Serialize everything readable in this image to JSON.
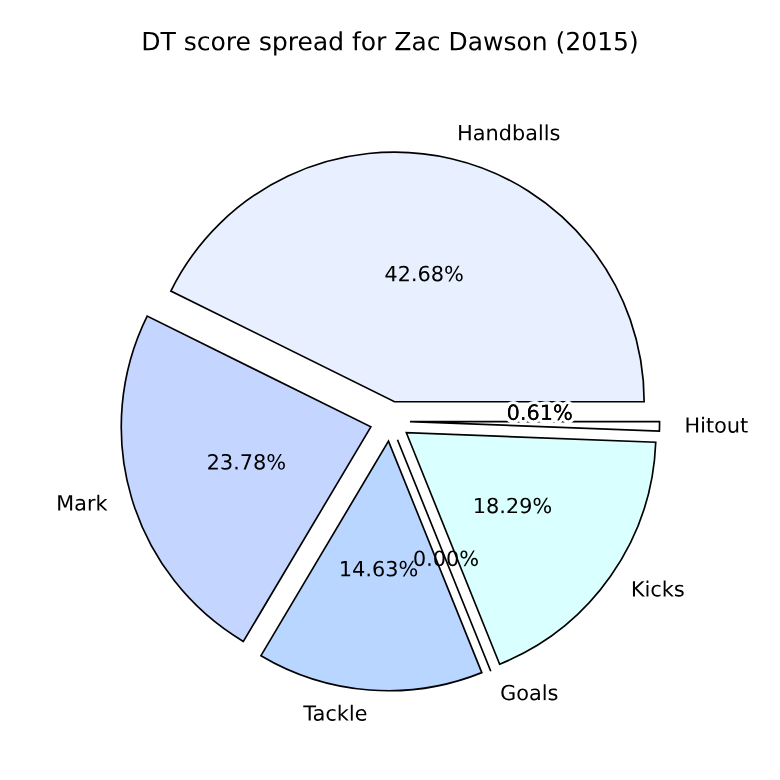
{
  "chart_data": {
    "type": "pie",
    "title": "DT score spread for Zac Dawson (2015)",
    "categories": [
      "Handballs",
      "Mark",
      "Tackle",
      "Goals",
      "Kicks",
      "Hitout"
    ],
    "values": [
      42.68,
      23.78,
      14.63,
      0.0,
      18.29,
      0.61
    ],
    "value_labels": [
      "42.68%",
      "23.78%",
      "14.63%",
      "0.00%",
      "18.29%",
      "0.61%"
    ],
    "colors": [
      "#e8f0ff",
      "#c4d6ff",
      "#b8d6ff",
      "#cce0ff",
      "#d9ffff",
      "#ffffff"
    ]
  }
}
